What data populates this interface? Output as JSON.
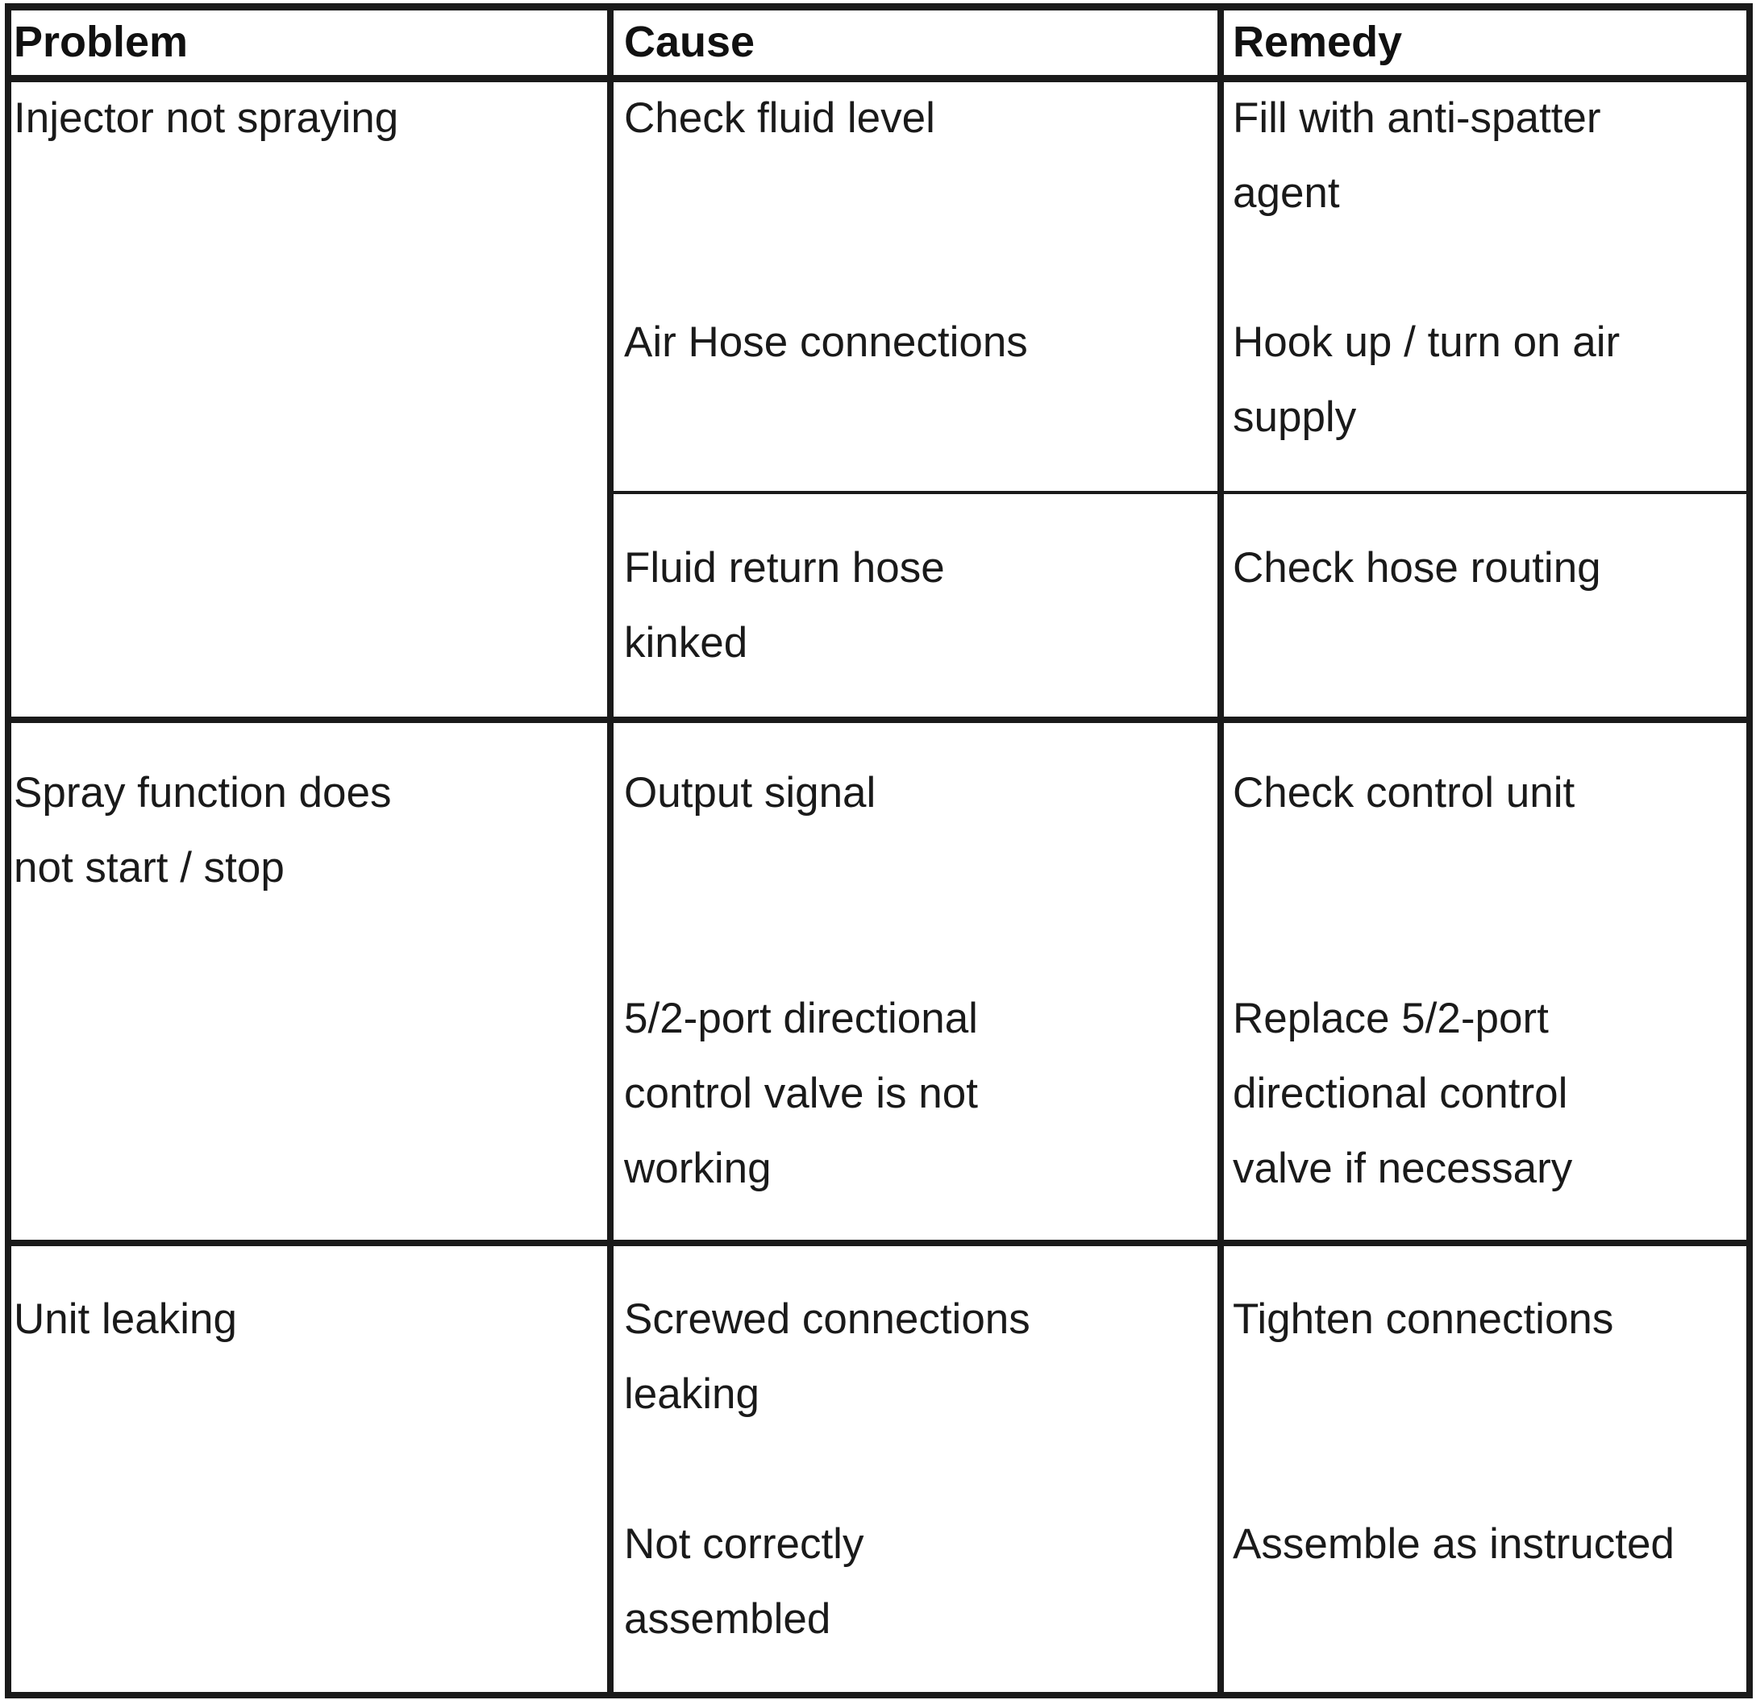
{
  "header": {
    "problem": "Problem",
    "cause": "Cause",
    "remedy": "Remedy"
  },
  "rows": [
    {
      "problem": [
        "Injector not spraying"
      ],
      "entries": [
        {
          "cause": [
            "Check fluid level"
          ],
          "remedy": [
            "Fill with anti-spatter",
            "agent"
          ]
        },
        {
          "cause": [
            "Air Hose connections"
          ],
          "remedy": [
            "Hook up / turn on air",
            "supply"
          ]
        },
        {
          "cause": [
            "Fluid return hose",
            "kinked"
          ],
          "remedy": [
            "Check hose routing"
          ]
        }
      ]
    },
    {
      "problem": [
        "Spray function does",
        "not start / stop"
      ],
      "entries": [
        {
          "cause": [
            "Output signal"
          ],
          "remedy": [
            "Check control unit"
          ]
        },
        {
          "cause": [
            "5/2-port directional",
            "control valve is not",
            "working"
          ],
          "remedy": [
            "Replace 5/2-port",
            "directional control",
            "valve if necessary"
          ]
        }
      ]
    },
    {
      "problem": [
        "Unit leaking"
      ],
      "entries": [
        {
          "cause": [
            "Screwed connections",
            "leaking"
          ],
          "remedy": [
            "Tighten connections"
          ]
        },
        {
          "cause": [
            "Not correctly",
            "assembled"
          ],
          "remedy": [
            "Assemble as instructed"
          ]
        }
      ]
    }
  ]
}
